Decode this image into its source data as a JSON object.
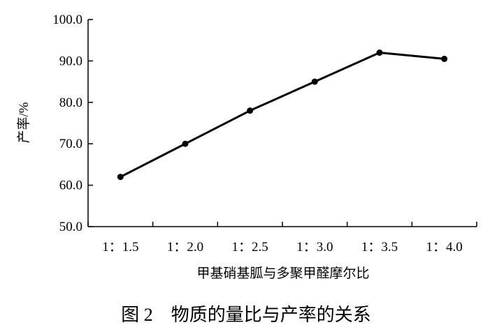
{
  "chart_data": {
    "type": "line",
    "categories": [
      "1：1.5",
      "1：2.0",
      "1：2.5",
      "1：3.0",
      "1：3.5",
      "1：4.0"
    ],
    "values": [
      62.0,
      70.0,
      78.0,
      85.0,
      92.0,
      90.5
    ],
    "ylabel": "产率/%",
    "xlabel": "甲基硝基胍与多聚甲醛摩尔比",
    "ylim": [
      50.0,
      100.0
    ],
    "yticks": [
      "50.0",
      "60.0",
      "70.0",
      "80.0",
      "90.0",
      "100.0"
    ],
    "grid": false,
    "legend": "none",
    "line_color": "#000000"
  },
  "caption": "图 2　物质的量比与产率的关系"
}
